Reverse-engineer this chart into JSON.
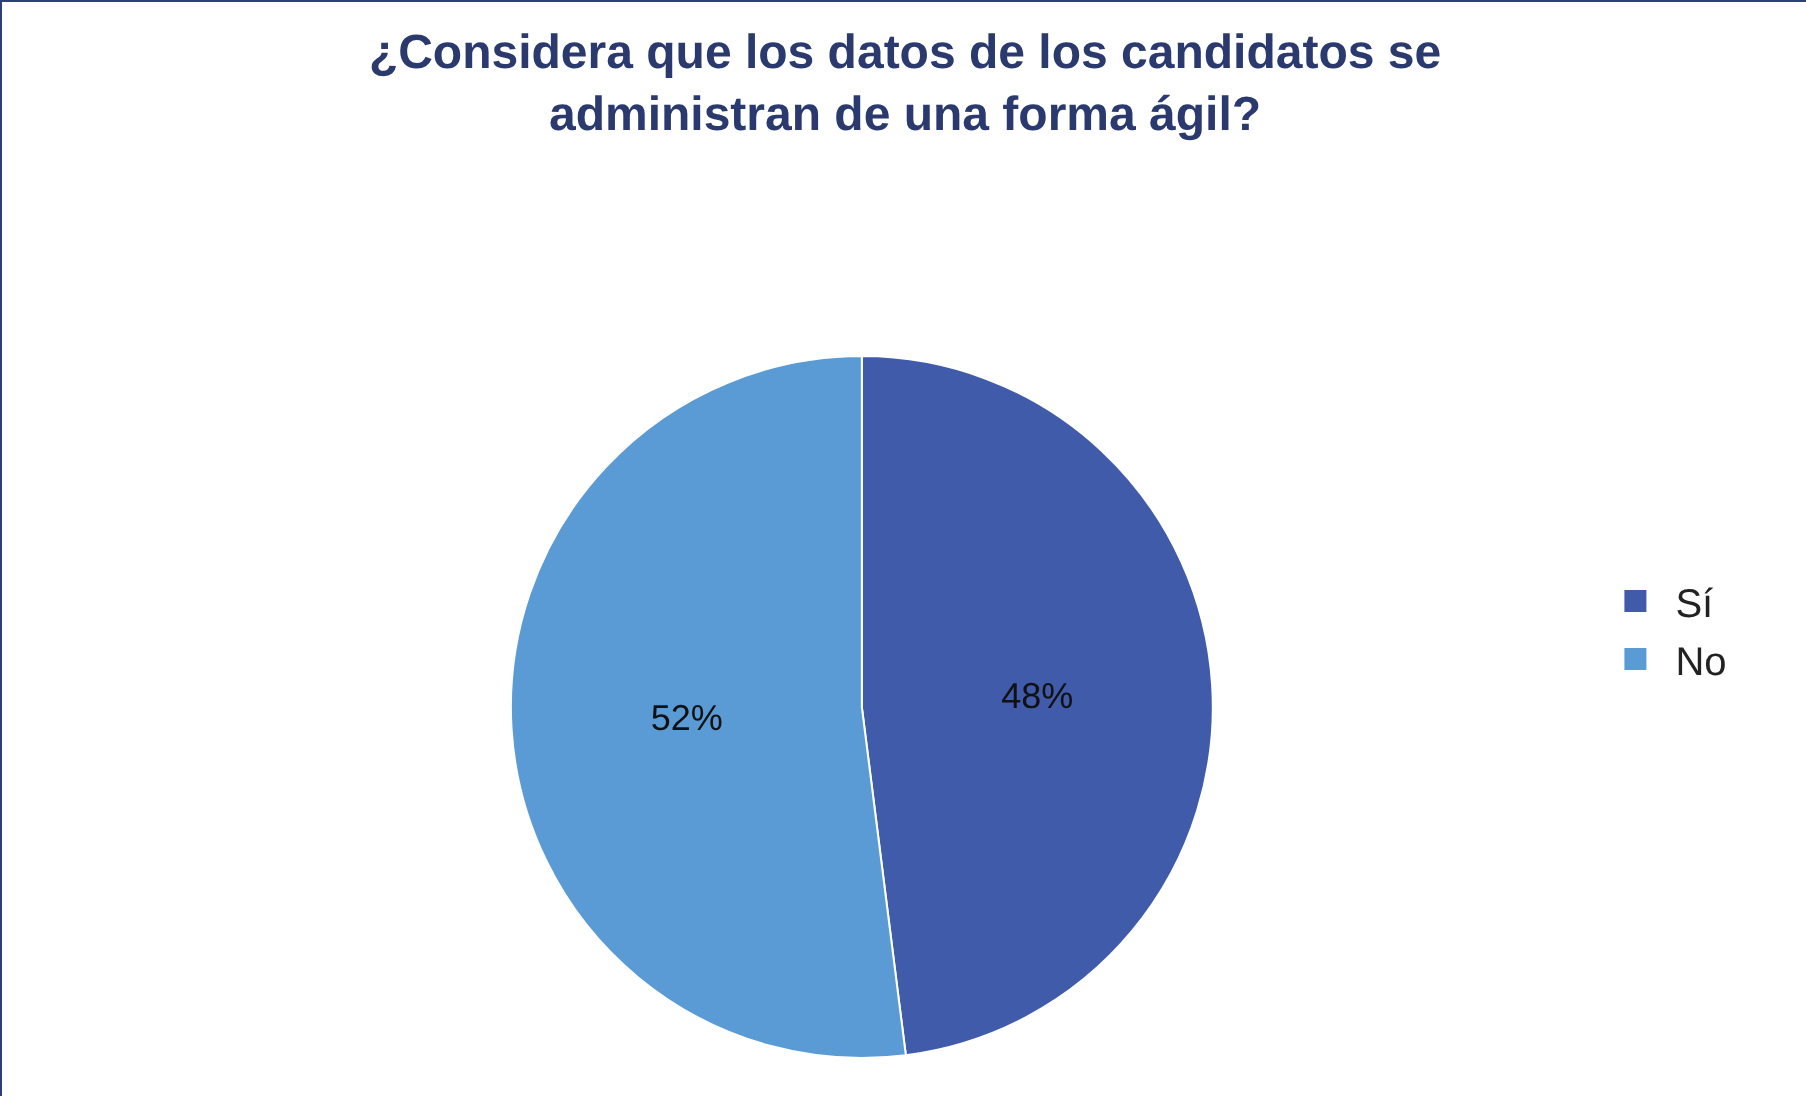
{
  "chart_data": {
    "type": "pie",
    "title": "¿Considera que los datos de los candidatos se administran de una forma ágil?",
    "categories": [
      "Sí",
      "No"
    ],
    "values": [
      48,
      52
    ],
    "colors": [
      "#3f5ba9",
      "#5b9bd5"
    ],
    "value_labels": [
      "48%",
      "52%"
    ],
    "legend": "right"
  }
}
